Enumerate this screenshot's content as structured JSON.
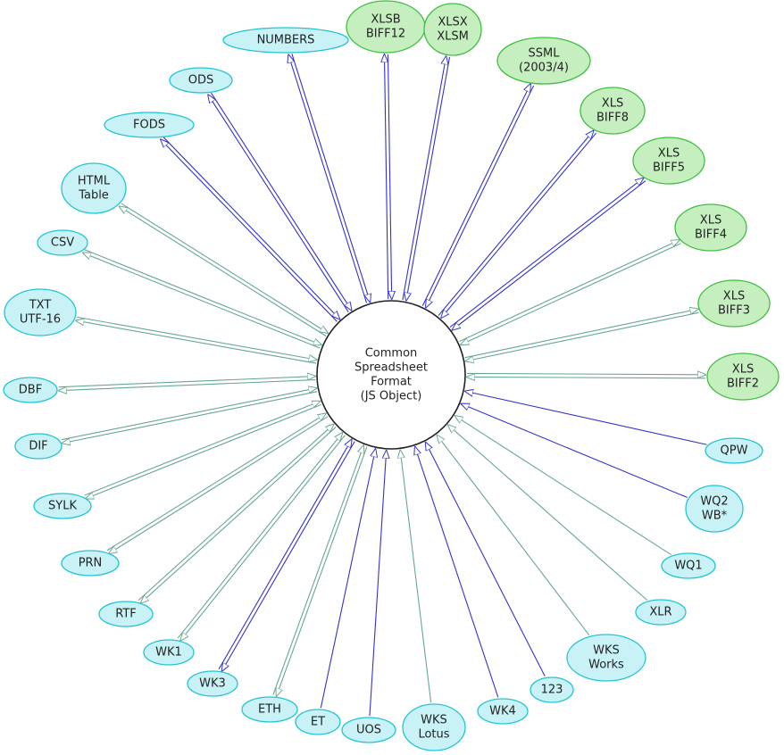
{
  "center": {
    "label": [
      "Common",
      "Spreadsheet",
      "Format",
      "(JS Object)"
    ]
  },
  "nodes": [
    {
      "label": [
        "NUMBERS"
      ]
    },
    {
      "label": [
        "XLSB",
        "BIFF12"
      ]
    },
    {
      "label": [
        "XLSX",
        "XLSM"
      ]
    },
    {
      "label": [
        "SSML",
        "(2003/4)"
      ]
    },
    {
      "label": [
        "XLS",
        "BIFF8"
      ]
    },
    {
      "label": [
        "XLS",
        "BIFF5"
      ]
    },
    {
      "label": [
        "XLS",
        "BIFF4"
      ]
    },
    {
      "label": [
        "XLS",
        "BIFF3"
      ]
    },
    {
      "label": [
        "XLS",
        "BIFF2"
      ]
    },
    {
      "label": [
        "QPW"
      ]
    },
    {
      "label": [
        "WQ2",
        "WB*"
      ]
    },
    {
      "label": [
        "WQ1"
      ]
    },
    {
      "label": [
        "XLR"
      ]
    },
    {
      "label": [
        "WKS",
        "Works"
      ]
    },
    {
      "label": [
        "123"
      ]
    },
    {
      "label": [
        "WK4"
      ]
    },
    {
      "label": [
        "WKS",
        "Lotus"
      ]
    },
    {
      "label": [
        "UOS"
      ]
    },
    {
      "label": [
        "ET"
      ]
    },
    {
      "label": [
        "ETH"
      ]
    },
    {
      "label": [
        "WK3"
      ]
    },
    {
      "label": [
        "WK1"
      ]
    },
    {
      "label": [
        "RTF"
      ]
    },
    {
      "label": [
        "PRN"
      ]
    },
    {
      "label": [
        "SYLK"
      ]
    },
    {
      "label": [
        "DIF"
      ]
    },
    {
      "label": [
        "DBF"
      ]
    },
    {
      "label": [
        "TXT",
        "UTF-16"
      ]
    },
    {
      "label": [
        "CSV"
      ]
    },
    {
      "label": [
        "HTML",
        "Table"
      ]
    },
    {
      "label": [
        "FODS"
      ]
    },
    {
      "label": [
        "ODS"
      ]
    }
  ]
}
